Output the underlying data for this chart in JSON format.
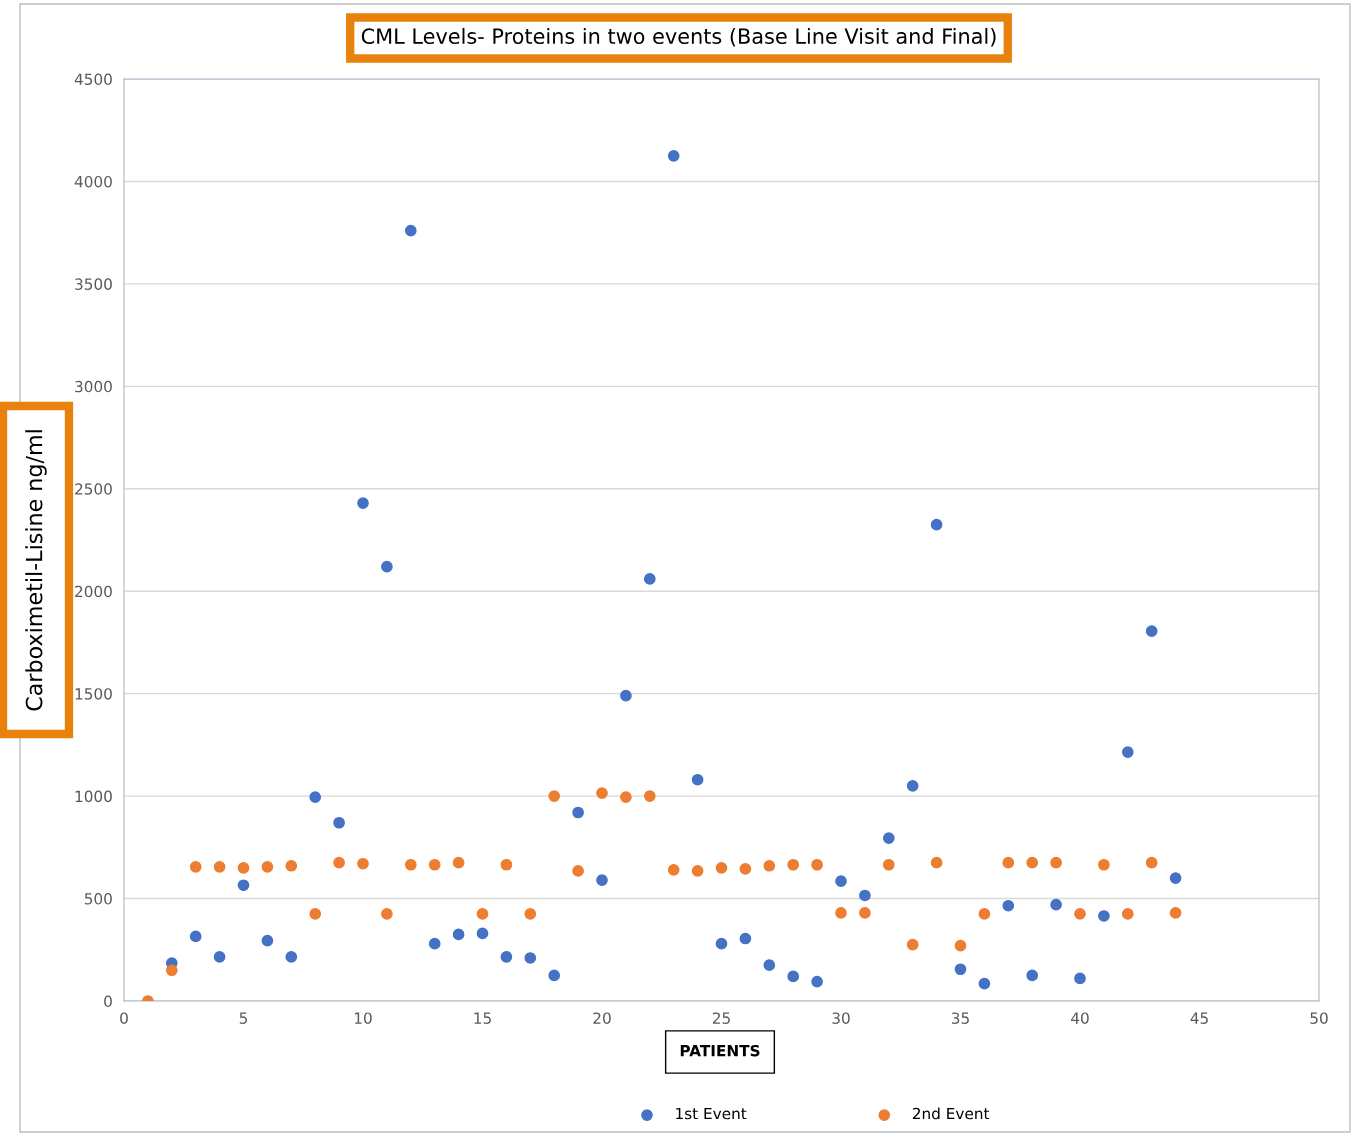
{
  "chart_data": {
    "type": "scatter",
    "title": "CML Levels- Proteins in two events (Base Line Visit and Final)",
    "xlabel": "PATIENTS",
    "ylabel": "Carboximetil-Lisine ng/ml",
    "x": [
      1,
      2,
      3,
      4,
      5,
      6,
      7,
      8,
      9,
      10,
      11,
      12,
      13,
      14,
      15,
      16,
      17,
      18,
      19,
      20,
      21,
      22,
      23,
      24,
      25,
      26,
      27,
      28,
      29,
      30,
      31,
      32,
      33,
      34,
      35,
      36,
      37,
      38,
      39,
      40,
      41,
      42,
      43,
      44
    ],
    "series": [
      {
        "name": "1st Event",
        "color": "#4472c4",
        "values": [
          null,
          185,
          315,
          215,
          565,
          295,
          215,
          995,
          870,
          2430,
          2120,
          3760,
          280,
          325,
          330,
          215,
          210,
          125,
          920,
          590,
          1490,
          2060,
          4125,
          1080,
          280,
          305,
          175,
          120,
          95,
          585,
          515,
          795,
          1050,
          2325,
          155,
          85,
          465,
          125,
          470,
          110,
          415,
          1215,
          1805,
          600
        ]
      },
      {
        "name": "2nd Event",
        "color": "#ed7d31",
        "values": [
          0,
          150,
          655,
          655,
          650,
          655,
          660,
          425,
          675,
          670,
          425,
          665,
          665,
          675,
          425,
          665,
          425,
          1000,
          635,
          1015,
          995,
          1000,
          640,
          635,
          650,
          645,
          660,
          665,
          665,
          430,
          430,
          665,
          275,
          675,
          270,
          425,
          675,
          675,
          675,
          425,
          665,
          425,
          675,
          430
        ]
      }
    ],
    "xlim": [
      0,
      50
    ],
    "xticks": [
      0,
      5,
      10,
      15,
      20,
      25,
      30,
      35,
      40,
      45,
      50
    ],
    "ylim": [
      0,
      4500
    ],
    "yticks": [
      0,
      500,
      1000,
      1500,
      2000,
      2500,
      3000,
      3500,
      4000,
      4500
    ],
    "grid": "y",
    "legend": "bottom",
    "marker": "circle"
  }
}
